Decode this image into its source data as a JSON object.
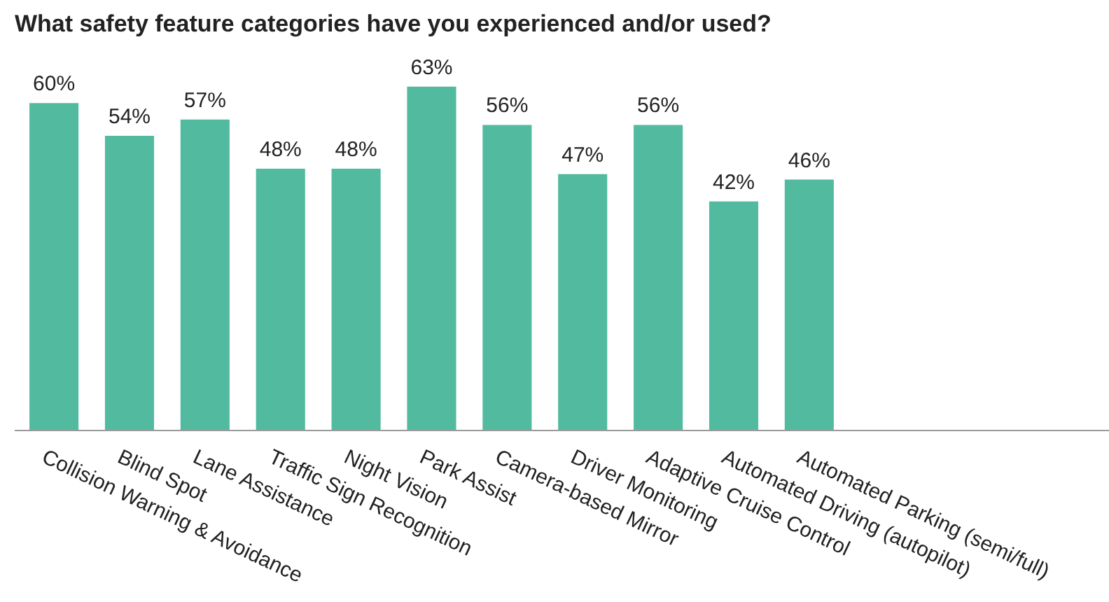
{
  "chart_data": {
    "type": "bar",
    "title": "What safety feature categories have you experienced and/or used?",
    "categories": [
      "Collision Warning & Avoidance",
      "Blind Spot",
      "Lane Assistance",
      "Traffic Sign Recognition",
      "Night Vision",
      "Park Assist",
      "Camera-based Mirror",
      "Driver Monitoring",
      "Adaptive Cruise Control",
      "Automated Driving (autopilot)",
      "Automated Parking (semi/full)"
    ],
    "values": [
      60,
      54,
      57,
      48,
      48,
      63,
      56,
      47,
      56,
      42,
      46
    ],
    "value_labels": [
      "60%",
      "54%",
      "57%",
      "48%",
      "48%",
      "63%",
      "56%",
      "47%",
      "56%",
      "42%",
      "46%"
    ],
    "color": "#52bb9f",
    "grid": false
  }
}
